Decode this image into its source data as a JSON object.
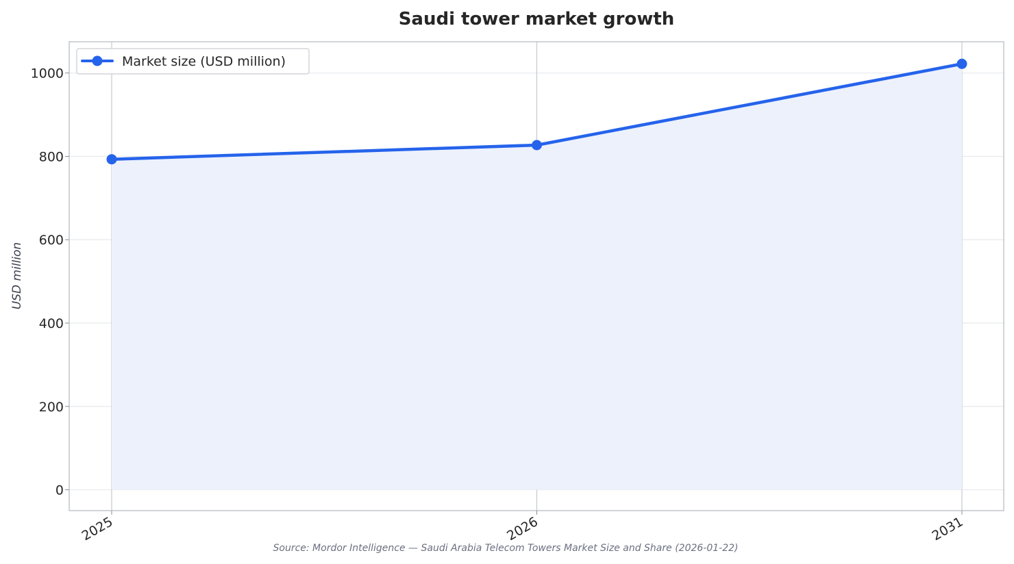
{
  "chart_data": {
    "type": "area",
    "title": "Saudi tower market growth",
    "xlabel": "",
    "ylabel": "USD million",
    "categories": [
      "2025",
      "2026",
      "2031"
    ],
    "series": [
      {
        "name": "Market size (USD million)",
        "values": [
          793,
          827,
          1022
        ],
        "color": "#2563eb",
        "fill_color": "#ecf1fc"
      }
    ],
    "ylim": [
      -50,
      1075
    ],
    "yticks": [
      0,
      200,
      400,
      600,
      800,
      1000
    ],
    "grid": true,
    "legend_position": "top-left",
    "source": "Source: Mordor Intelligence — Saudi Arabia Telecom Towers Market Size and Share (2026-01-22)"
  }
}
